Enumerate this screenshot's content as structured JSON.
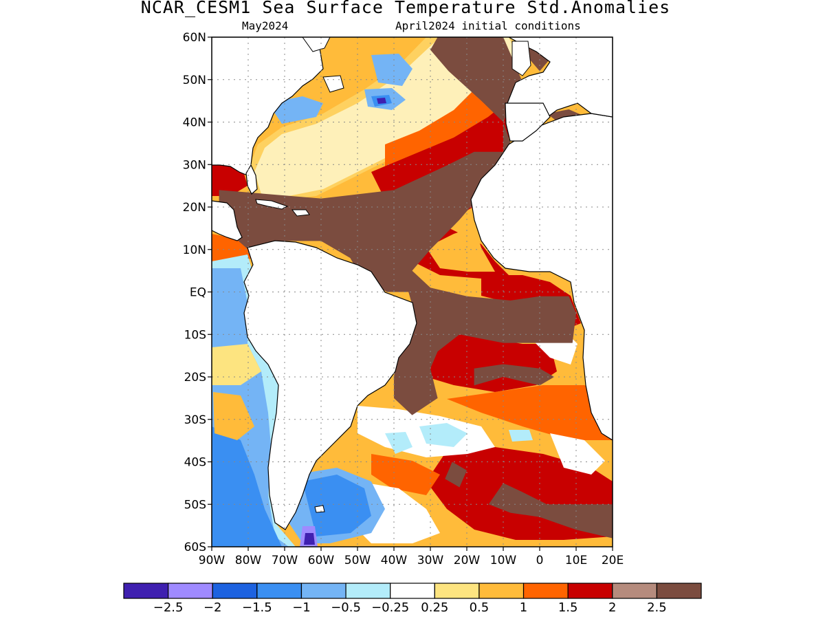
{
  "title": "NCAR_CESM1 Sea Surface Temperature Std.Anomalies",
  "subtitle_left": "May2024",
  "subtitle_right": "April2024 initial conditions",
  "map": {
    "lon_range": [
      -90,
      20
    ],
    "lat_range": [
      -60,
      60
    ],
    "grid": "dotted",
    "land_color": "#ffffff",
    "lat_ticks": [
      {
        "value": 60,
        "label": "60N"
      },
      {
        "value": 50,
        "label": "50N"
      },
      {
        "value": 40,
        "label": "40N"
      },
      {
        "value": 30,
        "label": "30N"
      },
      {
        "value": 20,
        "label": "20N"
      },
      {
        "value": 10,
        "label": "10N"
      },
      {
        "value": 0,
        "label": "EQ"
      },
      {
        "value": -10,
        "label": "10S"
      },
      {
        "value": -20,
        "label": "20S"
      },
      {
        "value": -30,
        "label": "30S"
      },
      {
        "value": -40,
        "label": "40S"
      },
      {
        "value": -50,
        "label": "50S"
      },
      {
        "value": -60,
        "label": "60S"
      }
    ],
    "lon_ticks": [
      {
        "value": -90,
        "label": "90W"
      },
      {
        "value": -80,
        "label": "80W"
      },
      {
        "value": -70,
        "label": "70W"
      },
      {
        "value": -60,
        "label": "60W"
      },
      {
        "value": -50,
        "label": "50W"
      },
      {
        "value": -40,
        "label": "40W"
      },
      {
        "value": -30,
        "label": "30W"
      },
      {
        "value": -20,
        "label": "20W"
      },
      {
        "value": -10,
        "label": "10W"
      },
      {
        "value": 0,
        "label": "0"
      },
      {
        "value": 10,
        "label": "10E"
      },
      {
        "value": 20,
        "label": "20E"
      }
    ],
    "anomaly_regions": [
      {
        "level": 2.5,
        "pts": [
          [
            -88,
            24
          ],
          [
            -60,
            22
          ],
          [
            -40,
            24
          ],
          [
            -25,
            30
          ],
          [
            -18,
            33
          ],
          [
            -10,
            33
          ],
          [
            -10,
            40
          ],
          [
            -16,
            45
          ],
          [
            -25,
            52
          ],
          [
            -30,
            57
          ],
          [
            -28,
            60
          ],
          [
            -10,
            60
          ],
          [
            -5,
            50
          ],
          [
            -10,
            40
          ],
          [
            -8,
            35
          ],
          [
            -14,
            25
          ],
          [
            -22,
            17
          ],
          [
            -30,
            10
          ],
          [
            -35,
            5
          ],
          [
            -30,
            1
          ],
          [
            -20,
            -1
          ],
          [
            -8,
            -2
          ],
          [
            0,
            -1
          ],
          [
            8,
            -1
          ],
          [
            10,
            -5
          ],
          [
            9,
            -12
          ],
          [
            2,
            -12
          ],
          [
            -10,
            -12
          ],
          [
            -22,
            -10
          ],
          [
            -28,
            -14
          ],
          [
            -30,
            -18
          ],
          [
            -28,
            -25
          ],
          [
            -35,
            -29
          ],
          [
            -40,
            -25
          ],
          [
            -40,
            -20
          ],
          [
            -38,
            -8
          ],
          [
            -34,
            -6
          ],
          [
            -36,
            0
          ],
          [
            -42,
            0
          ],
          [
            -50,
            5
          ],
          [
            -52,
            8
          ],
          [
            -60,
            12
          ],
          [
            -70,
            12
          ],
          [
            -80,
            10
          ],
          [
            -88,
            16
          ]
        ]
      },
      {
        "level": 2.5,
        "pts": [
          [
            -18,
            -22
          ],
          [
            -10,
            -20
          ],
          [
            0,
            -22
          ],
          [
            4,
            -20
          ],
          [
            0,
            -18
          ],
          [
            -10,
            -17
          ],
          [
            -18,
            -18
          ]
        ]
      },
      {
        "level": 2.5,
        "pts": [
          [
            -10,
            -45
          ],
          [
            -5,
            -47
          ],
          [
            2,
            -50
          ],
          [
            20,
            -50
          ],
          [
            20,
            -58
          ],
          [
            10,
            -56
          ],
          [
            0,
            -53
          ],
          [
            -8,
            -52
          ],
          [
            -14,
            -50
          ]
        ]
      },
      {
        "level": 2.5,
        "pts": [
          [
            -24,
            -40
          ],
          [
            -20,
            -42
          ],
          [
            -22,
            -46
          ],
          [
            -26,
            -44
          ]
        ]
      },
      {
        "level": 2.5,
        "pts": [
          [
            0,
            52
          ],
          [
            3,
            55
          ],
          [
            3,
            60
          ],
          [
            -3,
            60
          ],
          [
            -3,
            55
          ]
        ]
      },
      {
        "level": 2.5,
        "pts": [
          [
            2,
            42
          ],
          [
            8,
            43
          ],
          [
            16,
            40
          ],
          [
            18,
            37
          ],
          [
            12,
            38
          ],
          [
            5,
            40
          ]
        ]
      }
    ]
  },
  "colorbar": {
    "colors": [
      "#3f20b0",
      "#9f8aff",
      "#1d62e0",
      "#3a8ff2",
      "#74b4f5",
      "#b3ecfa",
      "#ffffff",
      "#fde480",
      "#ffbb3a",
      "#ff6400",
      "#c80000",
      "#b58b7d",
      "#7b4c3f"
    ],
    "labels": [
      "−2.5",
      "−2",
      "−1.5",
      "−1",
      "−0.5",
      "−0.25",
      "0.25",
      "0.5",
      "1",
      "1.5",
      "2",
      "2.5"
    ]
  }
}
